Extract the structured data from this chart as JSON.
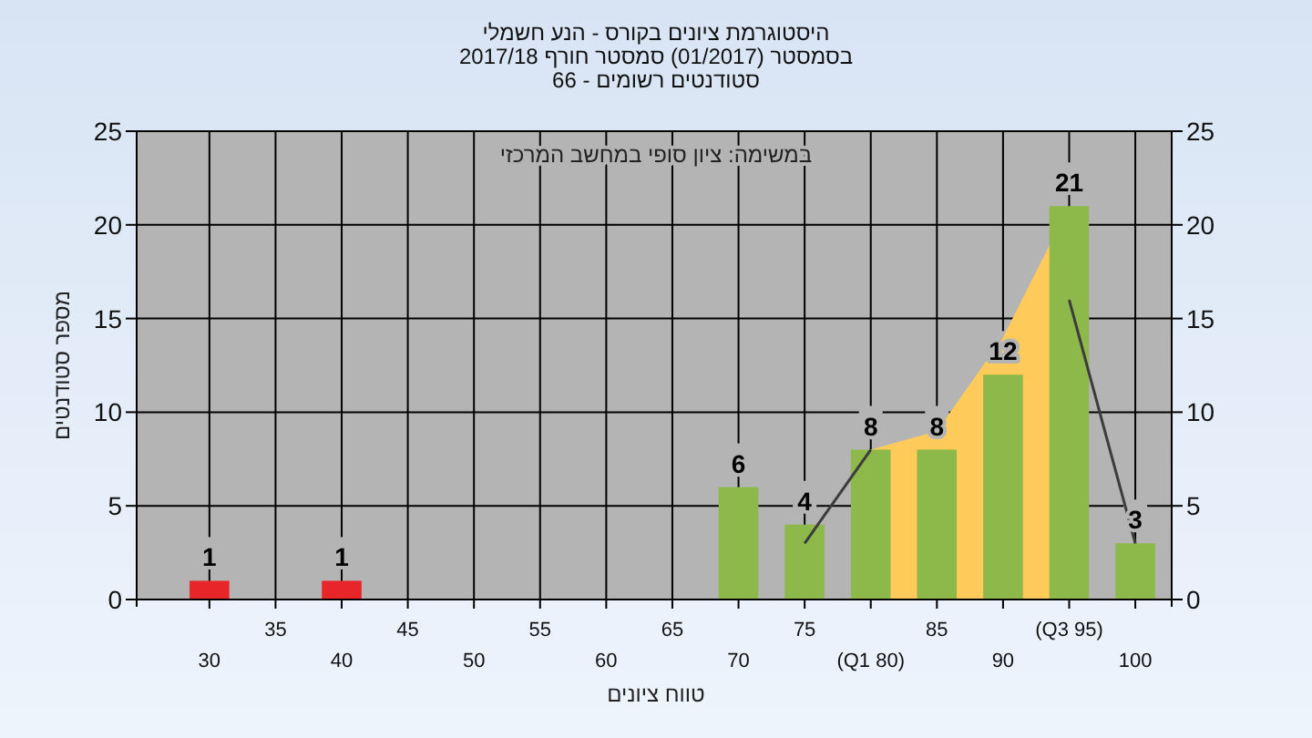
{
  "chart_data": {
    "type": "bar",
    "title": "היסטוגרמת ציונים בקורס - הנע חשמלי",
    "subtitle": "בסמסטר  (01/2017)  סמסטר חורף 2017/18\nסטודנטים רשומים - 66",
    "xlabel": "טווח ציונים",
    "ylabel": "מספר סטודנטים",
    "annotations": [
      "במשימה: ציון סופי במחשב המרכזי"
    ],
    "categories": [
      "30",
      "35",
      "40",
      "45",
      "50",
      "55",
      "60",
      "65",
      "70",
      "75",
      "(Q1 80)",
      "85",
      "90",
      "(Q3 95)",
      "100"
    ],
    "series": [
      {
        "type": "area",
        "color": "#fecb5a",
        "values": [
          null,
          null,
          null,
          null,
          null,
          null,
          null,
          null,
          null,
          null,
          8,
          9,
          14,
          21,
          null
        ]
      },
      {
        "colors": [
          "#e8262a",
          "#8db84a",
          "#e8262a",
          "#8db84a",
          "#8db84a",
          "#8db84a",
          "#8db84a",
          "#8db84a",
          "#8db84a",
          "#8db84a",
          "#8db84a",
          "#8db84a",
          "#8db84a",
          "#8db84a",
          "#8db84a"
        ],
        "values": [
          1,
          0,
          1,
          0,
          0,
          0,
          0,
          0,
          6,
          4,
          8,
          8,
          12,
          21,
          3
        ],
        "value_labels": [
          "1",
          null,
          "1",
          null,
          null,
          null,
          null,
          null,
          "6",
          "4",
          "8",
          "8",
          "12",
          "21",
          "3"
        ]
      },
      {
        "type": "line",
        "color": "#3c3c3c",
        "values": [
          null,
          null,
          null,
          null,
          null,
          null,
          null,
          null,
          null,
          3,
          8,
          null,
          null,
          16,
          3
        ]
      }
    ],
    "ylim": [
      0,
      25
    ],
    "yticks": [
      0,
      5,
      10,
      15,
      20,
      25
    ],
    "y2lim": [
      0,
      25
    ],
    "y2ticks": [
      0,
      5,
      10,
      15,
      20,
      25
    ],
    "grid": true
  }
}
